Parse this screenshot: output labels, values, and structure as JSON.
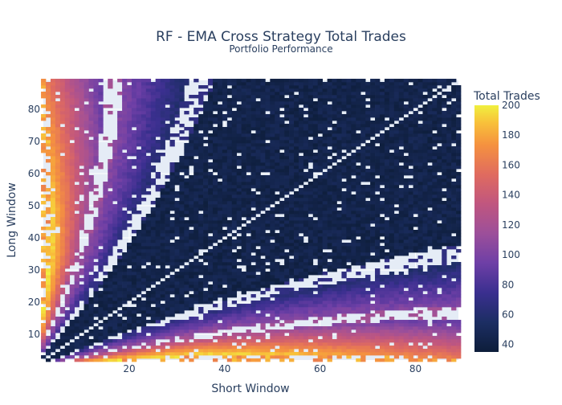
{
  "chart_data": {
    "type": "heatmap",
    "title": "RF - EMA Cross Strategy Total Trades",
    "subtitle": "Portfolio Performance",
    "xlabel": "Short Window",
    "ylabel": "Long Window",
    "xlim": [
      2,
      89
    ],
    "ylim": [
      2,
      89
    ],
    "x_ticks": [
      20,
      40,
      60,
      80
    ],
    "y_ticks": [
      10,
      20,
      30,
      40,
      50,
      60,
      70,
      80
    ],
    "colorbar": {
      "title": "Total Trades",
      "range": [
        35,
        200
      ],
      "ticks": [
        40,
        60,
        80,
        100,
        120,
        140,
        160,
        180,
        200
      ]
    },
    "colorscale": [
      "#0d0887",
      "#46039f",
      "#7201a8",
      "#9c179e",
      "#bd3786",
      "#d8576b",
      "#ed7953",
      "#fb9f3a",
      "#fdca26",
      "#f0f921"
    ],
    "colorscale_stops": [
      [
        "#0d1d3a",
        0.0
      ],
      [
        "#1c2e63",
        0.12
      ],
      [
        "#3a2f8f",
        0.24
      ],
      [
        "#6e3fa6",
        0.36
      ],
      [
        "#9c4f9a",
        0.48
      ],
      [
        "#c0567f",
        0.6
      ],
      [
        "#e06b5f",
        0.72
      ],
      [
        "#f5923f",
        0.84
      ],
      [
        "#f8c13a",
        0.93
      ],
      [
        "#f0f03f",
        1.0
      ]
    ],
    "bands": [
      {
        "name": "band-lower-left",
        "trades_at_edge": 200,
        "trades_far": 150
      },
      {
        "name": "band-middle",
        "trades_near": 120,
        "trades_far": 70
      },
      {
        "name": "band-upper",
        "trades_near": 80,
        "trades_far": 60
      },
      {
        "name": "band-top-right",
        "trades": 45
      }
    ],
    "grid": true,
    "legend": "right"
  }
}
